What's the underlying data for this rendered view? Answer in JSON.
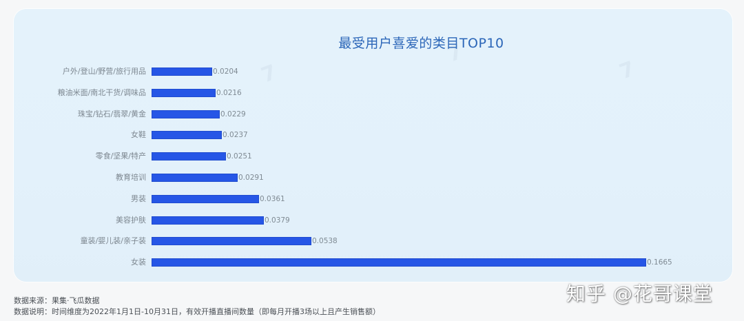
{
  "chart_data": {
    "type": "bar",
    "orientation": "horizontal",
    "title": "最受用户喜爱的类目TOP10",
    "categories": [
      "户外/登山/野营/旅行用品",
      "粮油米面/南北干货/调味品",
      "珠宝/钻石/翡翠/黄金",
      "女鞋",
      "零食/坚果/特产",
      "教育培训",
      "男装",
      "美容护肤",
      "童装/婴儿装/亲子装",
      "女装"
    ],
    "values": [
      0.0204,
      0.0216,
      0.0229,
      0.0237,
      0.0251,
      0.0291,
      0.0361,
      0.0379,
      0.0538,
      0.1665
    ],
    "value_labels": [
      "0.0204",
      "0.0216",
      "0.0229",
      "0.0237",
      "0.0251",
      "0.0291",
      "0.0361",
      "0.0379",
      "0.0538",
      "0.1665"
    ],
    "xlabel": "",
    "ylabel": "",
    "grid": false,
    "legend": null,
    "bar_color": "#2656e6"
  },
  "footer": {
    "source": "数据来源：果集·飞瓜数据",
    "note": "数据说明：时间维度为2022年1月1日-10月31日，有效开播直播间数量（即每月开播3场以上且产生销售额）"
  },
  "watermark": "知乎 @花哥课堂"
}
